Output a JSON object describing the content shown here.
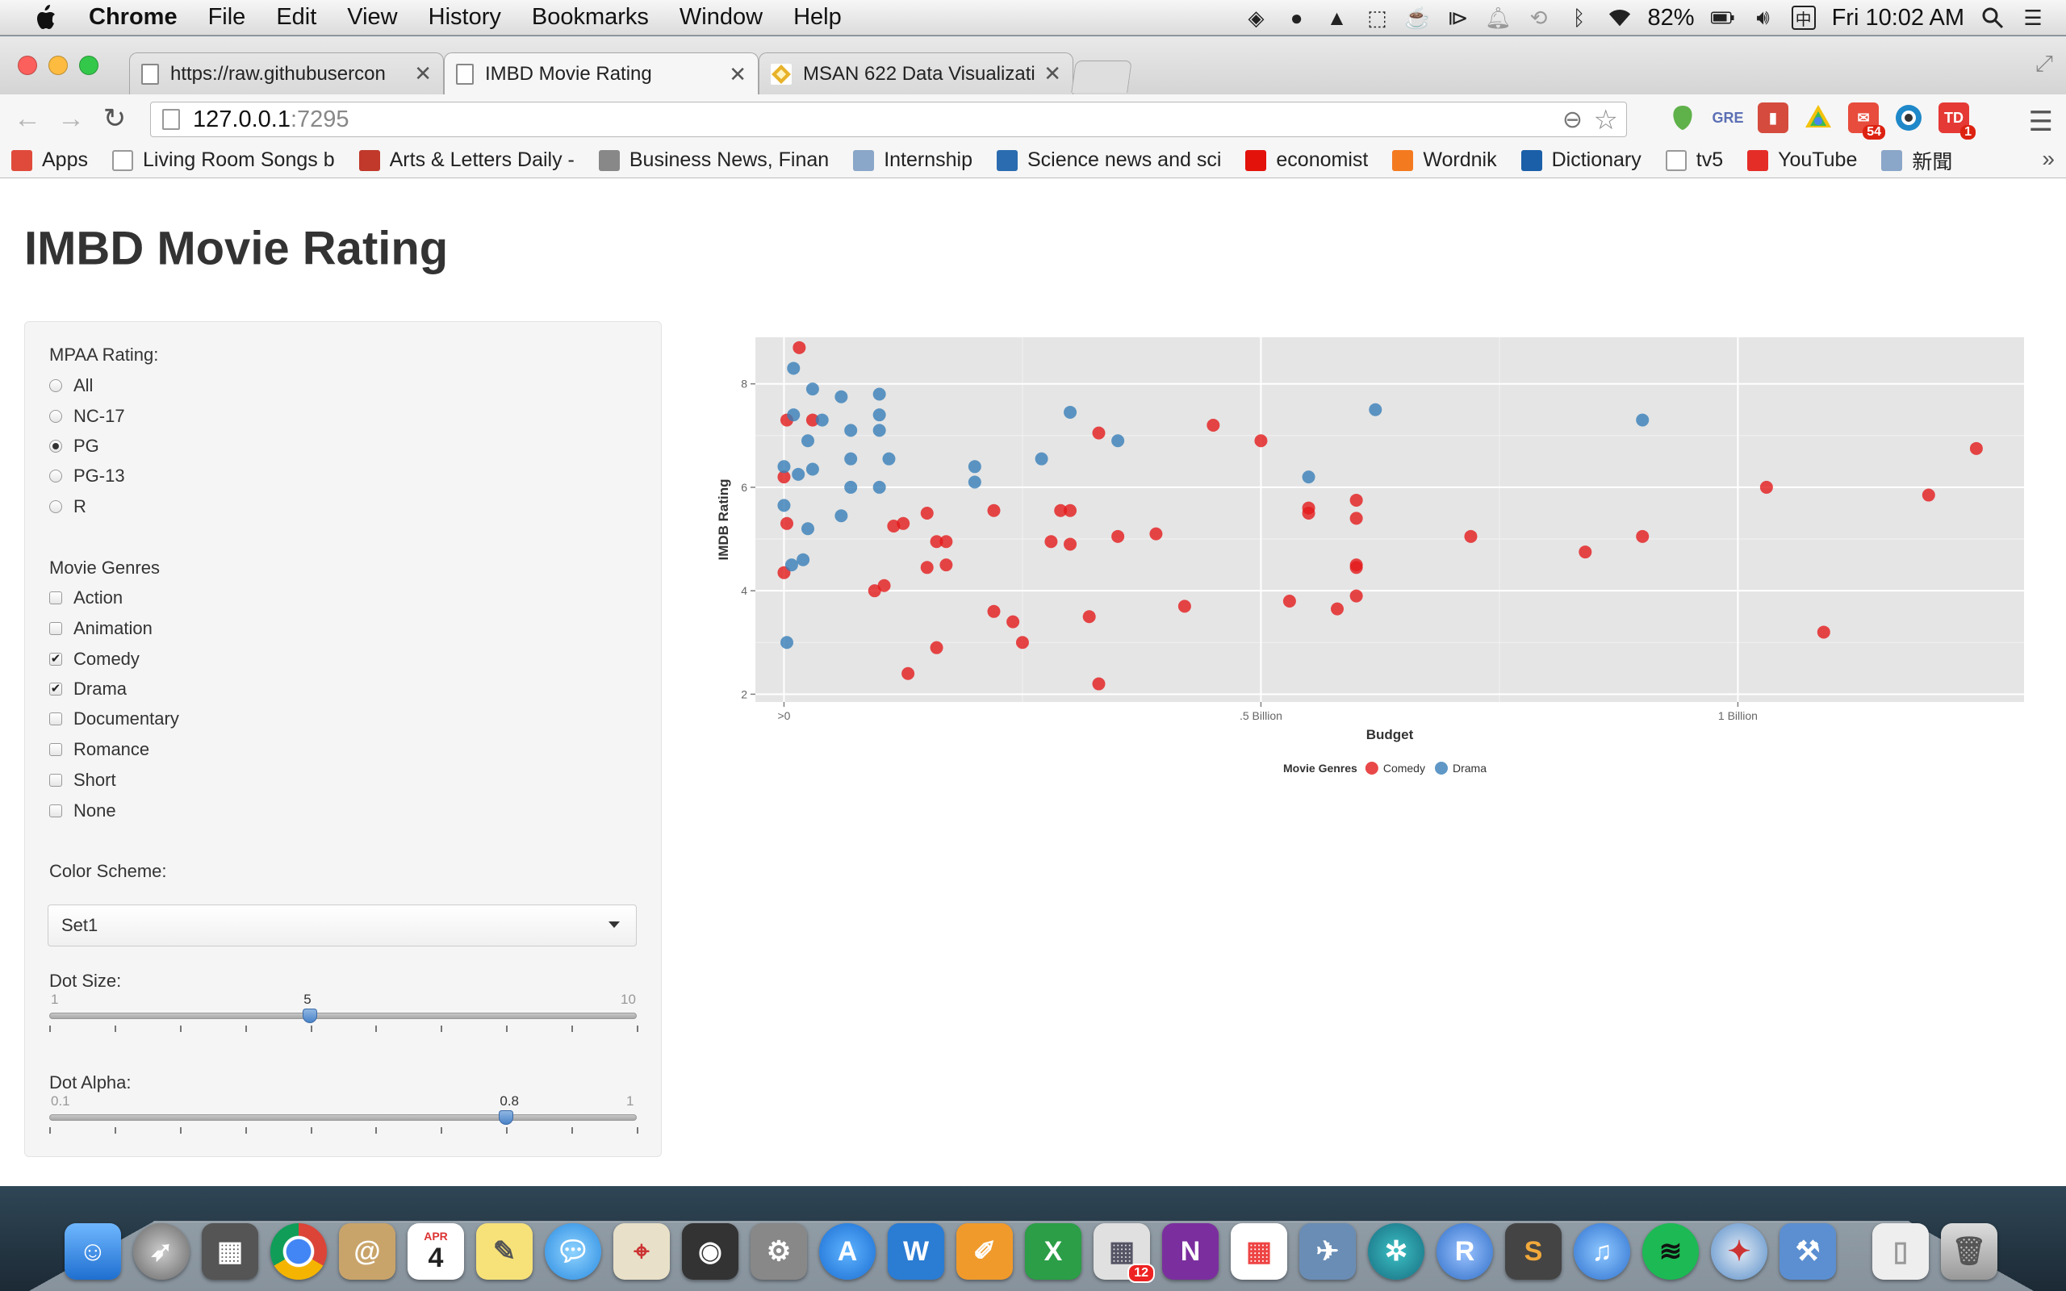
{
  "menubar": {
    "items": [
      "Chrome",
      "File",
      "Edit",
      "View",
      "History",
      "Bookmarks",
      "Window",
      "Help"
    ],
    "battery": "82%",
    "clock": "Fri 10:02 AM"
  },
  "tabs": [
    {
      "label": "https://raw.githubusercon"
    },
    {
      "label": "IMBD Movie Rating"
    },
    {
      "label": "MSAN 622 Data Visualizati"
    }
  ],
  "address": {
    "host": "127.0.0.1",
    "port": ":7295"
  },
  "extensions": {
    "gmail_badge": "54",
    "td_badge": "1"
  },
  "bookmarks": [
    {
      "label": "Apps",
      "icon": "apps-grid-icon",
      "color": "#e04a3b"
    },
    {
      "label": "Living Room Songs b",
      "icon": "page-icon",
      "color": "#ffffff"
    },
    {
      "label": "Arts & Letters Daily -",
      "icon": "figure-icon",
      "color": "#c0392b"
    },
    {
      "label": "Business News, Finan",
      "icon": "wsj-icon",
      "color": "#888888"
    },
    {
      "label": "Internship",
      "icon": "folder-icon",
      "color": "#8aa6c8"
    },
    {
      "label": "Science news and sci",
      "icon": "ns-icon",
      "color": "#2b6cb0"
    },
    {
      "label": "economist",
      "icon": "economist-icon",
      "color": "#e3120b"
    },
    {
      "label": "Wordnik",
      "icon": "heart-icon",
      "color": "#f47a20"
    },
    {
      "label": "Dictionary",
      "icon": "dictionary-icon",
      "color": "#1a5fa8"
    },
    {
      "label": "tv5",
      "icon": "page-icon",
      "color": "#ffffff"
    },
    {
      "label": "YouTube",
      "icon": "youtube-icon",
      "color": "#e52d27"
    },
    {
      "label": "新聞",
      "icon": "folder-icon",
      "color": "#8aa6c8"
    }
  ],
  "page": {
    "title": "IMBD Movie Rating",
    "mpaa": {
      "label": "MPAA Rating:",
      "options": [
        "All",
        "NC-17",
        "PG",
        "PG-13",
        "R"
      ],
      "selected": "PG"
    },
    "genres": {
      "label": "Movie Genres",
      "options": [
        "Action",
        "Animation",
        "Comedy",
        "Drama",
        "Documentary",
        "Romance",
        "Short",
        "None"
      ],
      "checked": [
        "Comedy",
        "Drama"
      ]
    },
    "color_scheme": {
      "label": "Color Scheme:",
      "value": "Set1"
    },
    "dot_size": {
      "label": "Dot Size:",
      "min": "1",
      "max": "10",
      "value": "5",
      "fraction": 0.444
    },
    "dot_alpha": {
      "label": "Dot Alpha:",
      "min": "0.1",
      "max": "1",
      "value": "0.8",
      "fraction": 0.778
    }
  },
  "chart_data": {
    "type": "scatter",
    "xlabel": "Budget",
    "ylabel": "IMDB Rating",
    "xlim": [
      -0.03,
      1.3
    ],
    "ylim": [
      1.85,
      8.9
    ],
    "x_unit": "billion USD",
    "x_ticks": [
      {
        "value": 0,
        "label": ">0"
      },
      {
        "value": 0.5,
        "label": ".5 Billion"
      },
      {
        "value": 1,
        "label": "1 Billion"
      }
    ],
    "y_ticks": [
      2,
      4,
      6,
      8
    ],
    "grid": true,
    "legend_title": "Movie Genres",
    "legend_position": "bottom",
    "series": [
      {
        "name": "Comedy",
        "color": "#e41a1c",
        "points": [
          [
            0.016,
            8.7
          ],
          [
            0.003,
            7.3
          ],
          [
            0.03,
            7.3
          ],
          [
            0.0,
            6.2
          ],
          [
            0.003,
            5.3
          ],
          [
            0.0,
            4.35
          ],
          [
            0.095,
            4.0
          ],
          [
            0.105,
            4.1
          ],
          [
            0.115,
            5.25
          ],
          [
            0.125,
            5.3
          ],
          [
            0.15,
            5.5
          ],
          [
            0.15,
            4.45
          ],
          [
            0.16,
            4.95
          ],
          [
            0.17,
            4.95
          ],
          [
            0.17,
            4.5
          ],
          [
            0.16,
            2.9
          ],
          [
            0.13,
            2.4
          ],
          [
            0.22,
            5.55
          ],
          [
            0.22,
            3.6
          ],
          [
            0.24,
            3.4
          ],
          [
            0.25,
            3.0
          ],
          [
            0.28,
            4.95
          ],
          [
            0.29,
            5.55
          ],
          [
            0.3,
            5.55
          ],
          [
            0.3,
            4.9
          ],
          [
            0.32,
            3.5
          ],
          [
            0.33,
            7.05
          ],
          [
            0.33,
            2.2
          ],
          [
            0.35,
            5.05
          ],
          [
            0.39,
            5.1
          ],
          [
            0.42,
            3.7
          ],
          [
            0.45,
            7.2
          ],
          [
            0.5,
            6.9
          ],
          [
            0.53,
            3.8
          ],
          [
            0.55,
            5.6
          ],
          [
            0.55,
            5.5
          ],
          [
            0.58,
            3.65
          ],
          [
            0.6,
            5.75
          ],
          [
            0.6,
            5.4
          ],
          [
            0.6,
            4.5
          ],
          [
            0.6,
            4.45
          ],
          [
            0.6,
            3.9
          ],
          [
            0.72,
            5.05
          ],
          [
            0.84,
            4.75
          ],
          [
            0.9,
            5.05
          ],
          [
            1.03,
            6.0
          ],
          [
            1.09,
            3.2
          ],
          [
            1.2,
            5.85
          ],
          [
            1.25,
            6.75
          ]
        ]
      },
      {
        "name": "Drama",
        "color": "#377eb8",
        "points": [
          [
            0.01,
            8.3
          ],
          [
            0.03,
            7.9
          ],
          [
            0.01,
            7.4
          ],
          [
            0.04,
            7.3
          ],
          [
            0.06,
            7.75
          ],
          [
            0.1,
            7.8
          ],
          [
            0.1,
            7.4
          ],
          [
            0.1,
            7.1
          ],
          [
            0.07,
            7.1
          ],
          [
            0.025,
            6.9
          ],
          [
            0.07,
            6.55
          ],
          [
            0.11,
            6.55
          ],
          [
            0.0,
            6.4
          ],
          [
            0.015,
            6.25
          ],
          [
            0.03,
            6.35
          ],
          [
            0.07,
            6.0
          ],
          [
            0.1,
            6.0
          ],
          [
            0.2,
            6.4
          ],
          [
            0.2,
            6.1
          ],
          [
            0.27,
            6.55
          ],
          [
            0.3,
            7.45
          ],
          [
            0.35,
            6.9
          ],
          [
            0.55,
            6.2
          ],
          [
            0.62,
            7.5
          ],
          [
            0.9,
            7.3
          ],
          [
            0.0,
            5.65
          ],
          [
            0.025,
            5.2
          ],
          [
            0.06,
            5.45
          ],
          [
            0.02,
            4.6
          ],
          [
            0.008,
            4.5
          ],
          [
            0.003,
            3.0
          ]
        ]
      }
    ]
  },
  "dock": {
    "calendar_month": "APR",
    "calendar_day": "4",
    "calendar_badge": "12",
    "r_label": "R",
    "w_label": "W",
    "x_label": "X",
    "n_label": "N",
    "s_label": "S"
  }
}
